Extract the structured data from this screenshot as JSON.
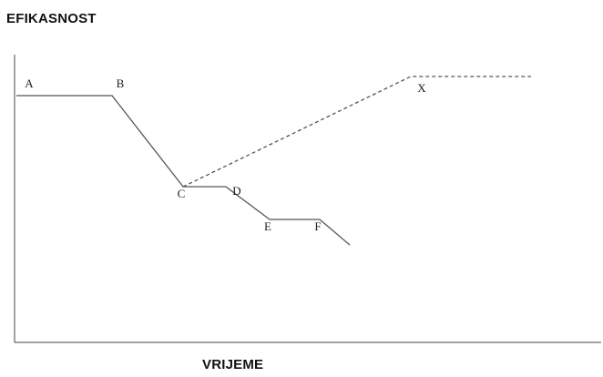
{
  "chart_data": {
    "type": "line",
    "title": "",
    "ylabel": "EFIKASNOST",
    "xlabel": "VRIJEME",
    "grid": false,
    "legend": "none",
    "points": [
      {
        "label": "A",
        "x": 0,
        "y": 100
      },
      {
        "label": "B",
        "x": 105,
        "y": 100
      },
      {
        "label": "C",
        "x": 183,
        "y": 0
      },
      {
        "label": "D",
        "x": 230,
        "y": 0
      },
      {
        "label": "E",
        "x": 278,
        "y": -36
      },
      {
        "label": "F",
        "x": 333,
        "y": -36
      },
      {
        "label": "X",
        "x": 433,
        "y": 121
      }
    ],
    "series": [
      {
        "style": "solid",
        "points": [
          [
            0,
            100
          ],
          [
            105,
            100
          ],
          [
            183,
            0
          ],
          [
            230,
            0
          ],
          [
            278,
            -36
          ],
          [
            333,
            -36
          ],
          [
            366,
            -64
          ]
        ]
      },
      {
        "style": "dashed",
        "points": [
          [
            183,
            0
          ],
          [
            433,
            121
          ],
          [
            565,
            121
          ]
        ]
      }
    ],
    "colors": {
      "line": "#555555",
      "axis": "#444444"
    }
  }
}
